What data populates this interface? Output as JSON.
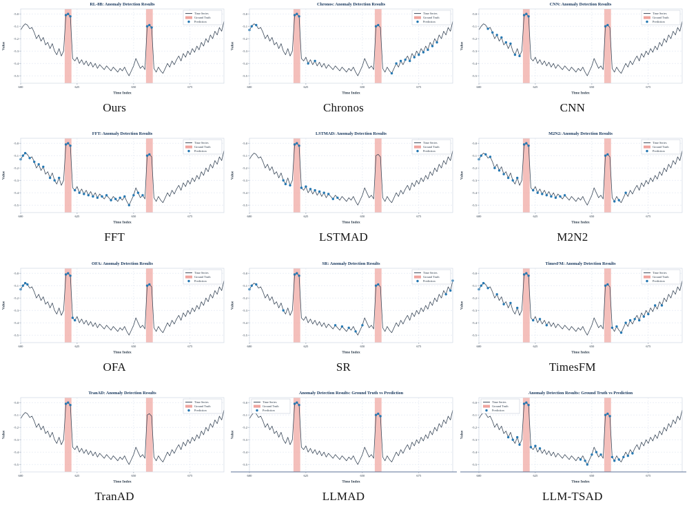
{
  "page": {
    "background": "#ffffff"
  },
  "colors": {
    "line": "#3a4859",
    "prediction": "#2678b2",
    "ground_truth": "#efa49e",
    "band_opacity": 0.7,
    "title": "#16365c",
    "text": "#2b3a4a",
    "grid": "#dfe6f0",
    "axis_border": "#cfd8e3",
    "tick": "#8a97a8",
    "strong_spine": "#5a6f96",
    "legend_border": "#b9c4d4",
    "legend_bg": "#ffffff"
  },
  "chart_data": {
    "type": "line",
    "xlabel": "Time Index",
    "ylabel": "Value",
    "x": {
      "start": 600,
      "end": 690,
      "step": 1
    },
    "x_ticks": [
      600,
      625,
      650,
      675
    ],
    "y_ticks": [
      -5.0,
      -5.1,
      -5.2,
      -5.3,
      -5.4,
      -5.5
    ],
    "ylim": [
      -5.56,
      -4.96
    ],
    "grid": "dashed",
    "legend": [
      "Time Series",
      "Ground Truth",
      "Prediction"
    ],
    "bands": [
      [
        619.5,
        622.5
      ],
      [
        655.5,
        658.5
      ]
    ],
    "values": [
      -5.13,
      -5.1,
      -5.08,
      -5.09,
      -5.12,
      -5.11,
      -5.15,
      -5.2,
      -5.17,
      -5.22,
      -5.19,
      -5.25,
      -5.23,
      -5.28,
      -5.24,
      -5.3,
      -5.33,
      -5.28,
      -5.34,
      -5.3,
      -5.01,
      -5.0,
      -5.02,
      -5.36,
      -5.38,
      -5.35,
      -5.4,
      -5.37,
      -5.41,
      -5.38,
      -5.42,
      -5.39,
      -5.43,
      -5.4,
      -5.44,
      -5.41,
      -5.43,
      -5.45,
      -5.42,
      -5.44,
      -5.46,
      -5.43,
      -5.45,
      -5.47,
      -5.44,
      -5.46,
      -5.43,
      -5.47,
      -5.5,
      -5.46,
      -5.42,
      -5.36,
      -5.4,
      -5.44,
      -5.42,
      -5.45,
      -5.1,
      -5.09,
      -5.11,
      -5.44,
      -5.47,
      -5.43,
      -5.46,
      -5.48,
      -5.44,
      -5.4,
      -5.43,
      -5.38,
      -5.41,
      -5.37,
      -5.34,
      -5.38,
      -5.32,
      -5.35,
      -5.3,
      -5.33,
      -5.28,
      -5.31,
      -5.26,
      -5.29,
      -5.23,
      -5.26,
      -5.2,
      -5.23,
      -5.17,
      -5.2,
      -5.14,
      -5.17,
      -5.11,
      -5.14,
      -5.06
    ],
    "charts": [
      {
        "title": "RL-8B: Anomaly Detection Results",
        "caption": "Ours",
        "legend_position": "top-right",
        "strong_bottom_spine": false,
        "predictions": [
          620,
          621,
          622,
          656,
          657,
          658
        ]
      },
      {
        "title": "Chronos: Anomaly Detection Results",
        "caption": "Chronos",
        "legend_position": "top-right",
        "strong_bottom_spine": false,
        "predictions": [
          600,
          601,
          603,
          620,
          621,
          622,
          626,
          629,
          656,
          657,
          663,
          665,
          667,
          669,
          671,
          673,
          675,
          677,
          679,
          681,
          683
        ]
      },
      {
        "title": "CNN: Anomaly Detection Results",
        "caption": "CNN",
        "legend_position": "top-right",
        "strong_bottom_spine": false,
        "predictions": [
          604,
          606,
          608,
          610,
          612,
          614,
          616,
          618,
          620,
          621,
          622,
          656,
          657
        ]
      },
      {
        "title": "FFT: Anomaly Detection Results",
        "caption": "FFT",
        "legend_position": "top-right",
        "strong_bottom_spine": false,
        "predictions": [
          600,
          601,
          602,
          604,
          606,
          608,
          610,
          613,
          615,
          617,
          620,
          621,
          622,
          624,
          626,
          628,
          630,
          632,
          634,
          636,
          638,
          640,
          642,
          644,
          646,
          648,
          650,
          652,
          654,
          656,
          657
        ]
      },
      {
        "title": "LSTMAD: Anomaly Detection Results",
        "caption": "LSTMAD",
        "legend_position": "top-right",
        "strong_bottom_spine": false,
        "predictions": [
          615,
          616,
          618,
          620,
          621,
          622,
          623,
          625,
          627,
          629,
          631,
          633,
          635,
          637,
          639
        ]
      },
      {
        "title": "M2N2: Anomaly Detection Results",
        "caption": "M2N2",
        "legend_position": "top-right",
        "strong_bottom_spine": false,
        "predictions": [
          600,
          601,
          603,
          605,
          607,
          609,
          611,
          613,
          615,
          617,
          620,
          621,
          622,
          624,
          626,
          628,
          630,
          632,
          634,
          636,
          638,
          656,
          657,
          660,
          662,
          665
        ]
      },
      {
        "title": "OFA: Anomaly Detection Results",
        "caption": "OFA",
        "legend_position": "top-right",
        "strong_bottom_spine": false,
        "predictions": [
          600,
          601,
          602,
          603,
          620,
          621,
          622,
          623,
          624,
          656,
          657
        ]
      },
      {
        "title": "SR: Anomaly Detection Results",
        "caption": "SR",
        "legend_position": "top-right",
        "strong_bottom_spine": false,
        "predictions": [
          600,
          601,
          603,
          615,
          620,
          621,
          622,
          638,
          641,
          644,
          647,
          650,
          656,
          657,
          687,
          689,
          690
        ]
      },
      {
        "title": "TimesFM: Anomaly Detection Results",
        "caption": "TimesFM",
        "legend_position": "top-right",
        "strong_bottom_spine": false,
        "predictions": [
          600,
          601,
          602,
          604,
          608,
          611,
          614,
          617,
          620,
          621,
          622,
          624,
          627,
          630,
          656,
          657,
          659,
          661,
          663,
          665,
          667,
          669,
          671,
          673,
          675,
          678,
          681
        ]
      },
      {
        "title": "TranAD: Anomaly Detection Results",
        "caption": "TranAD",
        "legend_position": "top-right",
        "strong_bottom_spine": false,
        "predictions": [
          620,
          621,
          622
        ]
      },
      {
        "title": "Anomaly Detection Results: Ground Truth vs Prediction",
        "caption": "LLMAD",
        "legend_position": "top-left",
        "strong_bottom_spine": true,
        "predictions": [
          620,
          621,
          622,
          656,
          657,
          658
        ]
      },
      {
        "title": "Anomaly Detection Results: Ground Truth vs Prediction",
        "caption": "LLM-TSAD",
        "legend_position": "top-left",
        "strong_bottom_spine": true,
        "predictions": [
          613,
          615,
          617,
          618,
          620,
          621,
          622,
          623,
          625,
          627,
          645,
          647,
          648,
          650,
          652,
          654,
          656,
          657,
          658,
          659,
          660,
          662,
          664,
          666,
          668
        ]
      }
    ]
  }
}
